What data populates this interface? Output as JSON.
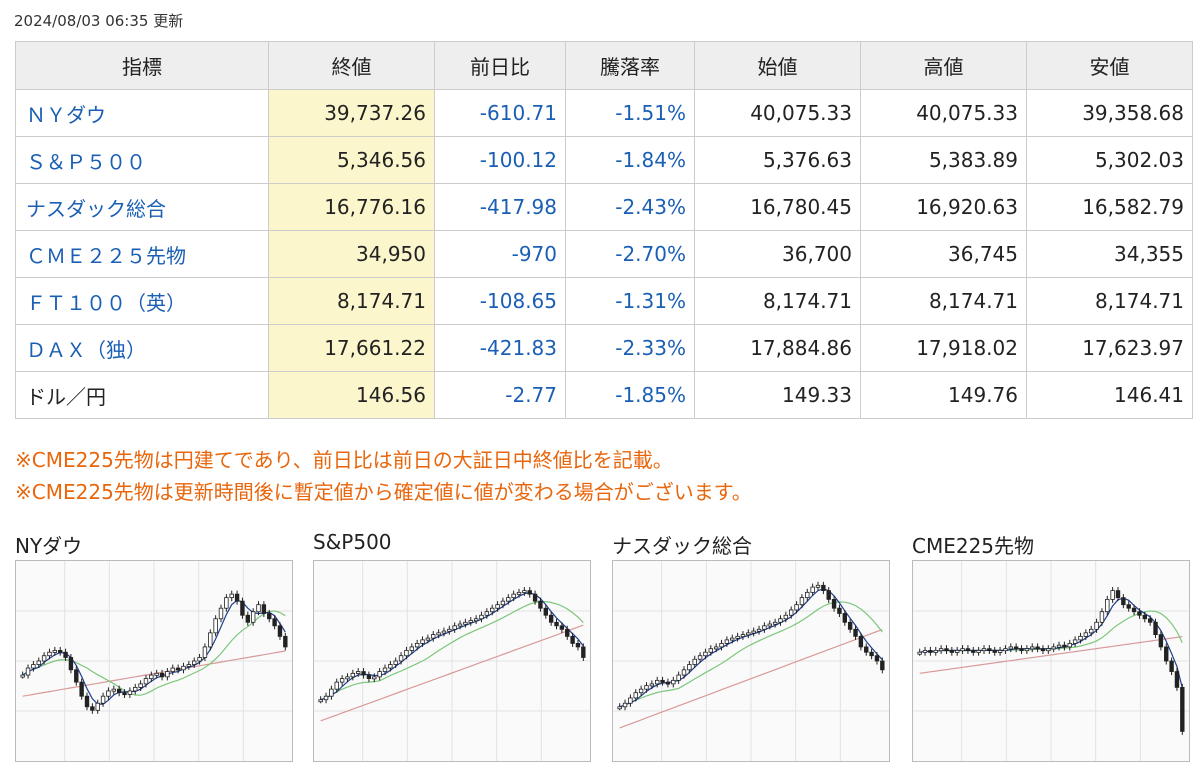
{
  "header": {
    "updated": "2024/08/03 06:35 更新"
  },
  "table": {
    "columns": [
      "指標",
      "終値",
      "前日比",
      "騰落率",
      "始値",
      "高値",
      "安値"
    ],
    "rows": [
      {
        "name": "ＮＹダウ",
        "close": "39,737.26",
        "change": "-610.71",
        "pct": "-1.51%",
        "open": "40,075.33",
        "high": "40,075.33",
        "low": "39,358.68",
        "link": true
      },
      {
        "name": "Ｓ＆Ｐ５００",
        "close": "5,346.56",
        "change": "-100.12",
        "pct": "-1.84%",
        "open": "5,376.63",
        "high": "5,383.89",
        "low": "5,302.03",
        "link": true
      },
      {
        "name": "ナスダック総合",
        "close": "16,776.16",
        "change": "-417.98",
        "pct": "-2.43%",
        "open": "16,780.45",
        "high": "16,920.63",
        "low": "16,582.79",
        "link": true
      },
      {
        "name": "ＣＭＥ２２５先物",
        "close": "34,950",
        "change": "-970",
        "pct": "-2.70%",
        "open": "36,700",
        "high": "36,745",
        "low": "34,355",
        "link": true
      },
      {
        "name": "ＦＴ１００（英）",
        "close": "8,174.71",
        "change": "-108.65",
        "pct": "-1.31%",
        "open": "8,174.71",
        "high": "8,174.71",
        "low": "8,174.71",
        "link": true
      },
      {
        "name": "ＤＡＸ（独）",
        "close": "17,661.22",
        "change": "-421.83",
        "pct": "-2.33%",
        "open": "17,884.86",
        "high": "17,918.02",
        "low": "17,623.97",
        "link": true
      },
      {
        "name": "ドル／円",
        "close": "146.56",
        "change": "-2.77",
        "pct": "-1.85%",
        "open": "149.33",
        "high": "149.76",
        "low": "146.41",
        "link": false
      }
    ]
  },
  "notes": [
    "※CME225先物は円建てであり、前日比は前日の大証日中終値比を記載。",
    "※CME225先物は更新時間後に暫定値から確定値に値が変わる場合がございます。"
  ],
  "charts": [
    {
      "label": "NYダウ"
    },
    {
      "label": "S&P500"
    },
    {
      "label": "ナスダック総合"
    },
    {
      "label": "CME225先物"
    }
  ],
  "colors": {
    "link": "#1a5fb4",
    "note": "#e8660c",
    "close_bg": "#fbf6cc",
    "ma_short": "#1f3f8f",
    "ma_mid": "#7cc77c",
    "ma_long": "#d99a9a"
  },
  "chart_data": [
    {
      "type": "candlestick",
      "title": "NYダウ",
      "values": [
        42,
        46,
        48,
        50,
        53,
        55,
        56,
        55,
        52,
        45,
        38,
        30,
        24,
        22,
        26,
        30,
        33,
        34,
        32,
        31,
        33,
        35,
        37,
        40,
        42,
        43,
        41,
        44,
        46,
        45,
        47,
        48,
        50,
        52,
        58,
        66,
        74,
        80,
        86,
        88,
        84,
        76,
        72,
        78,
        82,
        77,
        74,
        70,
        64,
        58
      ]
    },
    {
      "type": "candlestick",
      "title": "S&P500",
      "values": [
        28,
        30,
        34,
        38,
        40,
        41,
        43,
        44,
        42,
        40,
        41,
        44,
        46,
        48,
        50,
        53,
        56,
        58,
        60,
        62,
        63,
        65,
        66,
        67,
        68,
        70,
        71,
        72,
        73,
        74,
        76,
        78,
        80,
        82,
        84,
        86,
        88,
        89,
        90,
        88,
        84,
        80,
        76,
        72,
        70,
        68,
        64,
        60,
        58,
        52
      ]
    },
    {
      "type": "candlestick",
      "title": "ナスダック総合",
      "values": [
        24,
        26,
        29,
        32,
        34,
        36,
        37,
        39,
        38,
        37,
        39,
        42,
        45,
        48,
        51,
        53,
        55,
        57,
        58,
        60,
        62,
        63,
        64,
        65,
        66,
        67,
        68,
        70,
        71,
        72,
        74,
        76,
        79,
        82,
        86,
        89,
        92,
        93,
        90,
        85,
        80,
        77,
        72,
        68,
        64,
        58,
        55,
        53,
        50,
        45
      ]
    },
    {
      "type": "candlestick",
      "title": "CME225先物",
      "values": [
        55,
        56,
        55,
        56,
        57,
        56,
        55,
        56,
        57,
        56,
        55,
        56,
        57,
        56,
        55,
        56,
        57,
        58,
        57,
        56,
        57,
        58,
        57,
        56,
        57,
        58,
        59,
        58,
        60,
        62,
        64,
        66,
        68,
        72,
        78,
        85,
        90,
        86,
        82,
        80,
        78,
        76,
        74,
        72,
        65,
        58,
        50,
        44,
        35,
        10
      ]
    }
  ]
}
